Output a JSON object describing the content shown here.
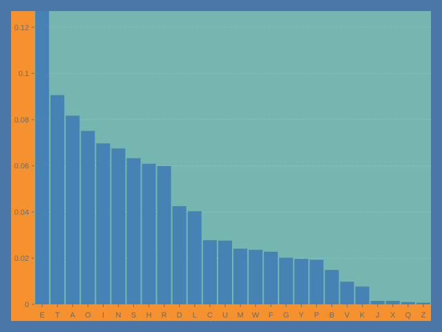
{
  "chart_data": {
    "type": "bar",
    "categories": [
      "E",
      "T",
      "A",
      "O",
      "I",
      "N",
      "S",
      "H",
      "R",
      "D",
      "L",
      "C",
      "U",
      "M",
      "W",
      "F",
      "G",
      "Y",
      "P",
      "B",
      "V",
      "K",
      "J",
      "X",
      "Q",
      "Z"
    ],
    "values": [
      0.127,
      0.0906,
      0.0817,
      0.0751,
      0.0697,
      0.0675,
      0.0633,
      0.0609,
      0.0599,
      0.0425,
      0.0403,
      0.0278,
      0.0276,
      0.0241,
      0.0236,
      0.0228,
      0.0202,
      0.0197,
      0.0193,
      0.0149,
      0.0098,
      0.0077,
      0.0015,
      0.0015,
      0.001,
      0.0007
    ],
    "y_ticks": [
      "0",
      "0.02",
      "0.04",
      "0.06",
      "0.08",
      "0.1",
      "0.12"
    ],
    "ylim": [
      0,
      0.127
    ],
    "grid": true,
    "colors": {
      "outer_background": "#4a77a8",
      "frame_background": "#f6912f",
      "plot_background": "#75b7b0",
      "bar": "#4682b4",
      "gridline": "#8cc7bf",
      "tick_text": "#6b6b6b"
    }
  }
}
